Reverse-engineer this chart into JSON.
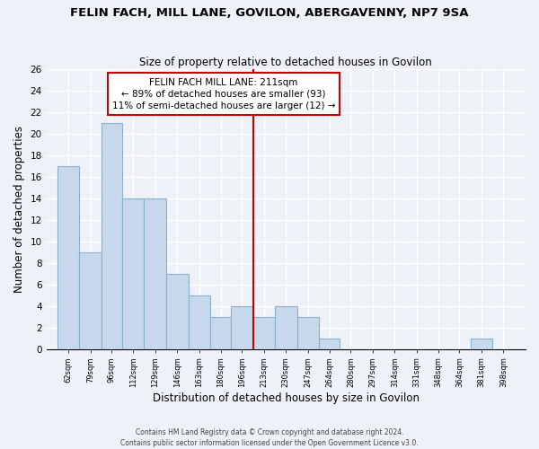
{
  "title": "FELIN FACH, MILL LANE, GOVILON, ABERGAVENNY, NP7 9SA",
  "subtitle": "Size of property relative to detached houses in Govilon",
  "xlabel": "Distribution of detached houses by size in Govilon",
  "ylabel": "Number of detached properties",
  "bin_labels": [
    "62sqm",
    "79sqm",
    "96sqm",
    "112sqm",
    "129sqm",
    "146sqm",
    "163sqm",
    "180sqm",
    "196sqm",
    "213sqm",
    "230sqm",
    "247sqm",
    "264sqm",
    "280sqm",
    "297sqm",
    "314sqm",
    "331sqm",
    "348sqm",
    "364sqm",
    "381sqm",
    "398sqm"
  ],
  "bin_edges": [
    62,
    79,
    96,
    112,
    129,
    146,
    163,
    180,
    196,
    213,
    230,
    247,
    264,
    280,
    297,
    314,
    331,
    348,
    364,
    381,
    398,
    415
  ],
  "bar_heights": [
    17,
    9,
    21,
    14,
    14,
    7,
    5,
    3,
    4,
    3,
    4,
    3,
    1,
    0,
    0,
    0,
    0,
    0,
    0,
    1,
    0
  ],
  "bar_color": "#c8d8ec",
  "bar_edge_color": "#8ab0cc",
  "vline_x": 213,
  "vline_color": "#cc0000",
  "annotation_title": "FELIN FACH MILL LANE: 211sqm",
  "annotation_line1": "← 89% of detached houses are smaller (93)",
  "annotation_line2": "11% of semi-detached houses are larger (12) →",
  "ylim": [
    0,
    26
  ],
  "yticks": [
    0,
    2,
    4,
    6,
    8,
    10,
    12,
    14,
    16,
    18,
    20,
    22,
    24,
    26
  ],
  "footer1": "Contains HM Land Registry data © Crown copyright and database right 2024.",
  "footer2": "Contains public sector information licensed under the Open Government Licence v3.0.",
  "bg_color": "#eef2f8",
  "grid_color": "white"
}
